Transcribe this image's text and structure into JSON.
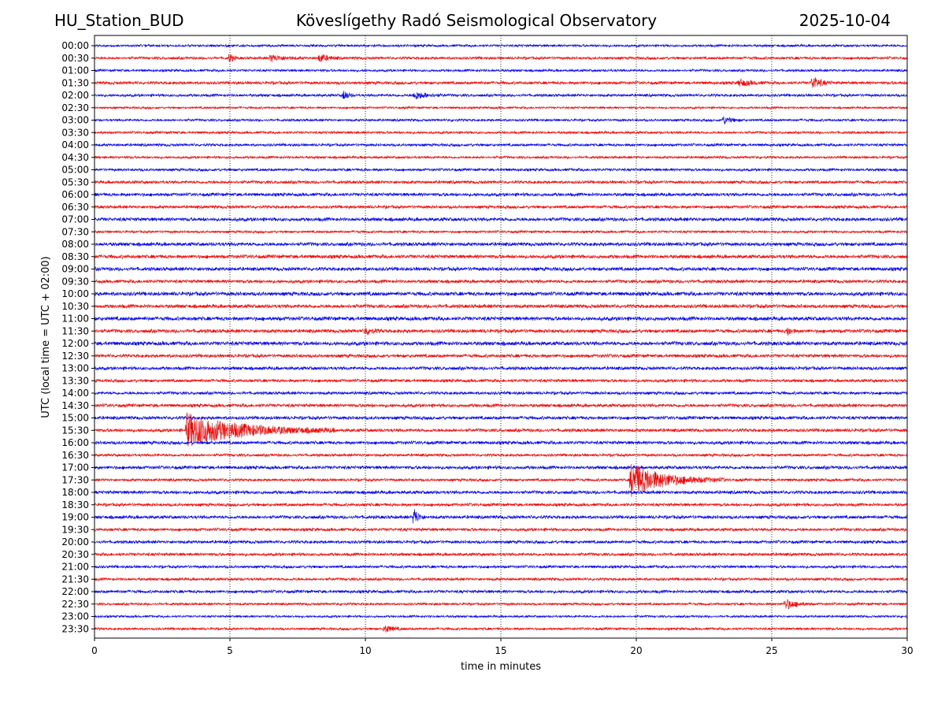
{
  "header": {
    "station": "HU_Station_BUD",
    "title": "Köveslígethy Radó Seismological Observatory",
    "date": "2025-10-04"
  },
  "colors": {
    "trace_a": "#0000ff",
    "trace_b": "#ff0000",
    "grid": "#000000"
  },
  "chart_data": {
    "type": "line",
    "title": "Köveslígethy Radó Seismological Observatory",
    "xlabel": "time in minutes",
    "ylabel": "UTC (local time = UTC + 02:00)",
    "xlim": [
      0,
      30
    ],
    "xticks": [
      0,
      5,
      10,
      15,
      20,
      25,
      30
    ],
    "grid": "vertical dotted at x ticks",
    "rows": [
      "00:00",
      "00:30",
      "01:00",
      "01:30",
      "02:00",
      "02:30",
      "03:00",
      "03:30",
      "04:00",
      "04:30",
      "05:00",
      "05:30",
      "06:00",
      "06:30",
      "07:00",
      "07:30",
      "08:00",
      "08:30",
      "09:00",
      "09:30",
      "10:00",
      "10:30",
      "11:00",
      "11:30",
      "12:00",
      "12:30",
      "13:00",
      "13:30",
      "14:00",
      "14:30",
      "15:00",
      "15:30",
      "16:00",
      "16:30",
      "17:00",
      "17:30",
      "18:00",
      "18:30",
      "19:00",
      "19:30",
      "20:00",
      "20:30",
      "21:00",
      "21:30",
      "22:00",
      "22:30",
      "23:00",
      "23:30"
    ],
    "color_cycle": [
      "blue",
      "red"
    ],
    "base_amplitude": [
      0.45,
      0.5,
      0.45,
      0.55,
      0.5,
      0.4,
      0.45,
      0.45,
      0.5,
      0.45,
      0.5,
      0.55,
      0.6,
      0.55,
      0.65,
      0.45,
      0.65,
      0.65,
      0.65,
      0.6,
      0.7,
      0.65,
      0.7,
      0.65,
      0.7,
      0.6,
      0.6,
      0.55,
      0.55,
      0.6,
      0.6,
      0.6,
      0.6,
      0.5,
      0.6,
      0.5,
      0.6,
      0.55,
      0.6,
      0.55,
      0.55,
      0.55,
      0.5,
      0.5,
      0.55,
      0.45,
      0.4,
      0.45
    ],
    "events": [
      {
        "row": "00:30",
        "minute": 5.0,
        "amplitude": 2.2,
        "duration": 0.3
      },
      {
        "row": "00:30",
        "minute": 6.5,
        "amplitude": 1.3,
        "duration": 1.2
      },
      {
        "row": "00:30",
        "minute": 8.3,
        "amplitude": 1.8,
        "duration": 0.8
      },
      {
        "row": "01:30",
        "minute": 26.5,
        "amplitude": 2.6,
        "duration": 0.8
      },
      {
        "row": "01:30",
        "minute": 23.8,
        "amplitude": 1.4,
        "duration": 1.0
      },
      {
        "row": "02:00",
        "minute": 9.2,
        "amplitude": 2.2,
        "duration": 0.4
      },
      {
        "row": "02:00",
        "minute": 11.8,
        "amplitude": 1.6,
        "duration": 1.2
      },
      {
        "row": "03:00",
        "minute": 23.2,
        "amplitude": 1.6,
        "duration": 0.8
      },
      {
        "row": "11:30",
        "minute": 10.0,
        "amplitude": 1.5,
        "duration": 0.6
      },
      {
        "row": "11:30",
        "minute": 25.6,
        "amplitude": 1.8,
        "duration": 0.3
      },
      {
        "row": "15:30",
        "minute": 3.4,
        "amplitude": 6.5,
        "duration": 5.5
      },
      {
        "row": "17:30",
        "minute": 19.8,
        "amplitude": 6.5,
        "duration": 3.5
      },
      {
        "row": "19:00",
        "minute": 11.8,
        "amplitude": 4.0,
        "duration": 0.4
      },
      {
        "row": "22:30",
        "minute": 25.5,
        "amplitude": 2.2,
        "duration": 1.0
      },
      {
        "row": "23:30",
        "minute": 10.7,
        "amplitude": 1.5,
        "duration": 0.8
      }
    ]
  }
}
